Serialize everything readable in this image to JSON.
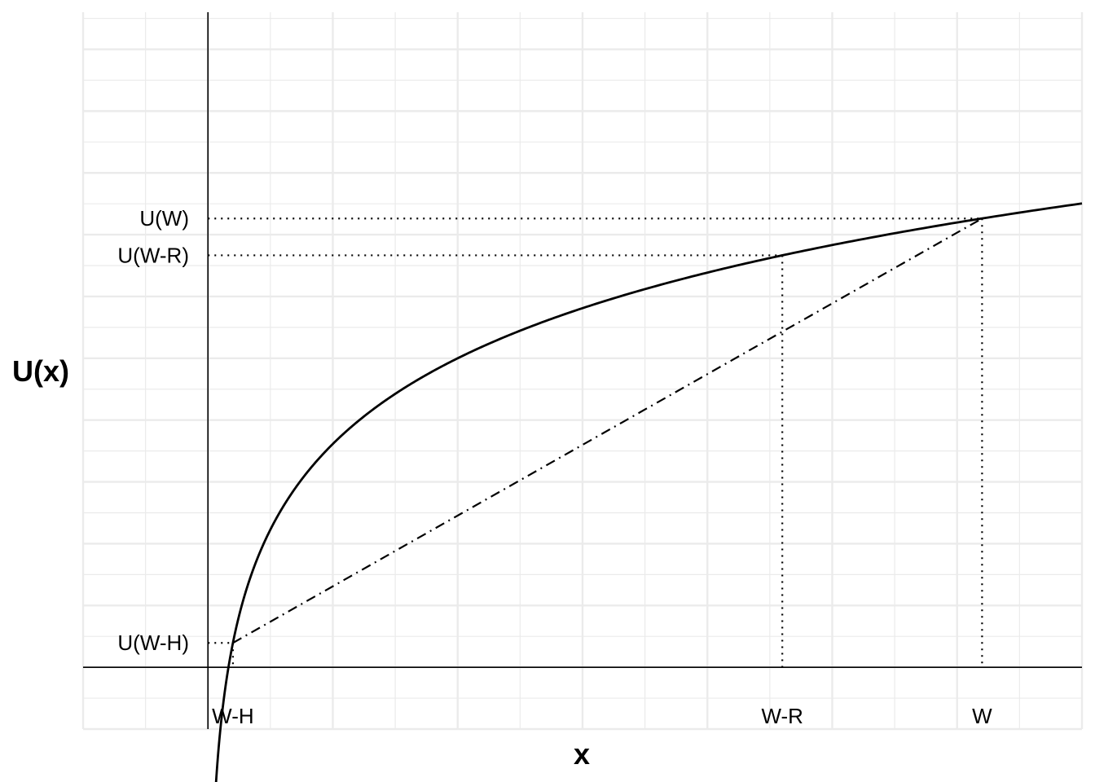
{
  "chart_data": {
    "type": "line",
    "xlabel": "x",
    "ylabel": "U(x)",
    "xlim": [
      -0.5,
      3.5
    ],
    "ylim": [
      -3.0,
      2.8
    ],
    "grid": true,
    "colors": {
      "grid": "#ebebeb",
      "axis": "#000000",
      "curve": "#000000",
      "background": "#ffffff"
    },
    "curve": {
      "function": "log",
      "x_range": [
        0.03,
        3.5
      ]
    },
    "points": {
      "W-H": {
        "x": 0.1,
        "y": -2.303
      },
      "W-R": {
        "x": 2.3,
        "y": 0.833
      },
      "W": {
        "x": 3.1,
        "y": 1.131
      }
    },
    "chord": {
      "from": "W-H",
      "to": "W",
      "style": "dashdot"
    },
    "guides": [
      {
        "point": "W-H",
        "style": "dotted"
      },
      {
        "point": "W-R",
        "style": "dotted"
      },
      {
        "point": "W",
        "style": "dotted"
      }
    ],
    "x_tick_labels": [
      {
        "label": "W-H",
        "x": 0.1
      },
      {
        "label": "W-R",
        "x": 2.3
      },
      {
        "label": "W",
        "x": 3.1
      }
    ],
    "y_tick_labels": [
      {
        "label": "U(W)",
        "y": 1.131
      },
      {
        "label": "U(W-R)",
        "y": 0.833
      },
      {
        "label": "U(W-H)",
        "y": -2.303
      }
    ]
  }
}
